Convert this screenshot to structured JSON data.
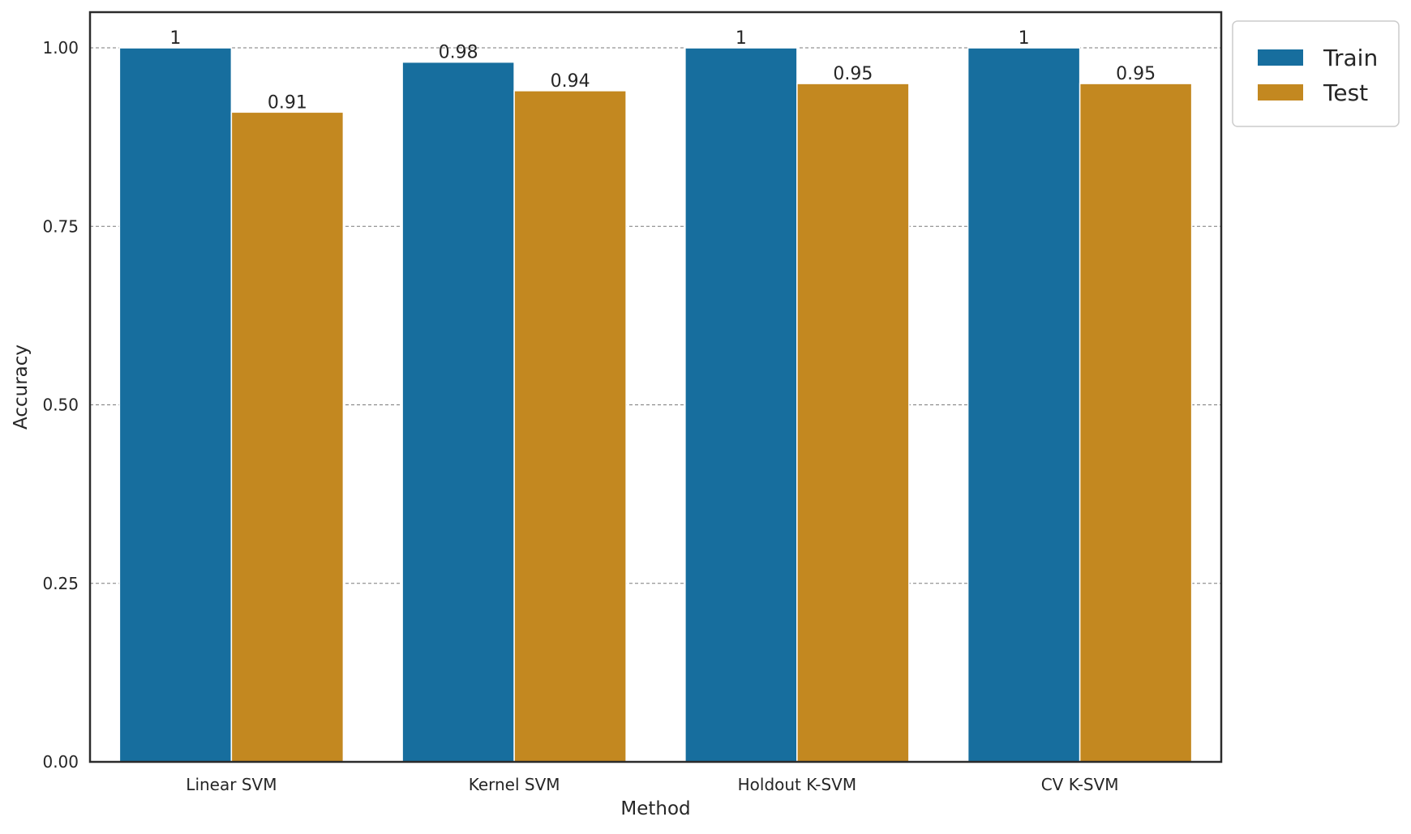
{
  "chart_data": {
    "type": "bar",
    "title": "",
    "xlabel": "Method",
    "ylabel": "Accuracy",
    "categories": [
      "Linear SVM",
      "Kernel SVM",
      "Holdout K-SVM",
      "CV K-SVM"
    ],
    "series": [
      {
        "name": "Train",
        "color": "#176e9e",
        "values": [
          1.0,
          0.98,
          1.0,
          1.0
        ],
        "labels": [
          "1",
          "0.98",
          "1",
          "1"
        ]
      },
      {
        "name": "Test",
        "color": "#c38820",
        "values": [
          0.91,
          0.94,
          0.95,
          0.95
        ],
        "labels": [
          "0.91",
          "0.94",
          "0.95",
          "0.95"
        ]
      }
    ],
    "ylim": [
      0,
      1.05
    ],
    "yticks": [
      0.0,
      0.25,
      0.5,
      0.75,
      1.0
    ],
    "ytick_labels": [
      "0.00",
      "0.25",
      "0.50",
      "0.75",
      "1.00"
    ],
    "grid": "horizontal dashed",
    "legend_position": "outside top-right"
  }
}
